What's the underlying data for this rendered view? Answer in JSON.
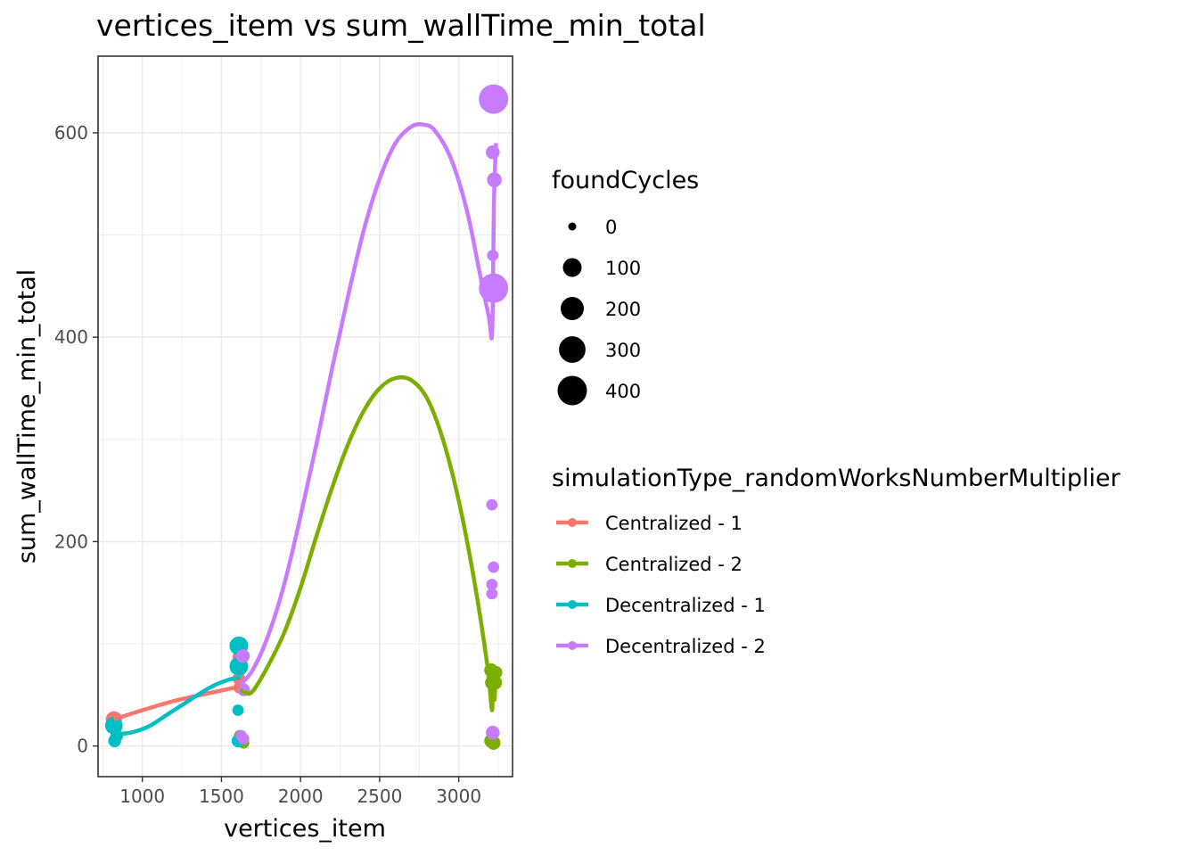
{
  "chart_data": {
    "type": "scatter",
    "title": "vertices_item  vs  sum_wallTime_min_total",
    "xlabel": "vertices_item",
    "ylabel": "sum_wallTime_min_total",
    "xlim": [
      720,
      3340
    ],
    "ylim": [
      -30,
      675
    ],
    "x_ticks": [
      1000,
      1500,
      2000,
      2500,
      3000
    ],
    "y_ticks": [
      0,
      200,
      400,
      600
    ],
    "grid": true,
    "legend_position": "right",
    "size_legend": {
      "title": "foundCycles",
      "values": [
        0,
        100,
        200,
        300,
        400
      ]
    },
    "color_legend": {
      "title": "simulationType_randomWorksNumberMultiplier"
    },
    "series": [
      {
        "name": "Centralized - 1",
        "color": "#F8766D",
        "points": [
          {
            "x": 820,
            "y": 26,
            "size": 60
          },
          {
            "x": 820,
            "y": 24,
            "size": 20
          },
          {
            "x": 1610,
            "y": 87,
            "size": 20
          },
          {
            "x": 1610,
            "y": 66,
            "size": 20
          },
          {
            "x": 1612,
            "y": 57,
            "size": 10
          }
        ],
        "fit": [
          [
            820,
            26
          ],
          [
            1000,
            35
          ],
          [
            1200,
            44
          ],
          [
            1400,
            51
          ],
          [
            1550,
            56
          ],
          [
            1620,
            58
          ]
        ]
      },
      {
        "name": "Centralized - 2",
        "color": "#7CAE00",
        "points": [
          {
            "x": 1615,
            "y": 10,
            "size": 10
          },
          {
            "x": 1620,
            "y": 5,
            "size": 10
          },
          {
            "x": 1640,
            "y": 3,
            "size": 10
          },
          {
            "x": 3205,
            "y": 74,
            "size": 30
          },
          {
            "x": 3220,
            "y": 70,
            "size": 30
          },
          {
            "x": 3235,
            "y": 72,
            "size": 20
          },
          {
            "x": 3210,
            "y": 62,
            "size": 30
          },
          {
            "x": 3230,
            "y": 62,
            "size": 30
          },
          {
            "x": 3205,
            "y": 5,
            "size": 30
          },
          {
            "x": 3220,
            "y": 3,
            "size": 30
          }
        ],
        "fit": [
          [
            1620,
            55
          ],
          [
            1650,
            52
          ],
          [
            1700,
            54
          ],
          [
            1800,
            80
          ],
          [
            1900,
            112
          ],
          [
            2000,
            155
          ],
          [
            2100,
            205
          ],
          [
            2200,
            253
          ],
          [
            2300,
            295
          ],
          [
            2400,
            328
          ],
          [
            2500,
            350
          ],
          [
            2600,
            360
          ],
          [
            2700,
            358
          ],
          [
            2800,
            340
          ],
          [
            2900,
            300
          ],
          [
            3000,
            240
          ],
          [
            3100,
            160
          ],
          [
            3180,
            80
          ],
          [
            3210,
            35
          ],
          [
            3215,
            70
          ],
          [
            3225,
            45
          ],
          [
            3232,
            65
          ]
        ]
      },
      {
        "name": "Decentralized - 1",
        "color": "#00BFC4",
        "points": [
          {
            "x": 820,
            "y": 20,
            "size": 80
          },
          {
            "x": 825,
            "y": 5,
            "size": 20
          },
          {
            "x": 838,
            "y": 10,
            "size": 20
          },
          {
            "x": 1610,
            "y": 98,
            "size": 100
          },
          {
            "x": 1610,
            "y": 78,
            "size": 100
          },
          {
            "x": 1605,
            "y": 35,
            "size": 10
          },
          {
            "x": 1605,
            "y": 5,
            "size": 20
          }
        ],
        "fit": [
          [
            820,
            15
          ],
          [
            860,
            12
          ],
          [
            950,
            14
          ],
          [
            1050,
            20
          ],
          [
            1150,
            30
          ],
          [
            1250,
            40
          ],
          [
            1350,
            50
          ],
          [
            1450,
            59
          ],
          [
            1550,
            65
          ],
          [
            1620,
            67
          ]
        ]
      },
      {
        "name": "Decentralized - 2",
        "color": "#C77CFF",
        "points": [
          {
            "x": 3220,
            "y": 633,
            "size": 400
          },
          {
            "x": 3215,
            "y": 581,
            "size": 30
          },
          {
            "x": 3225,
            "y": 554,
            "size": 40
          },
          {
            "x": 3215,
            "y": 480,
            "size": 10
          },
          {
            "x": 3220,
            "y": 448,
            "size": 400
          },
          {
            "x": 3210,
            "y": 236,
            "size": 10
          },
          {
            "x": 3220,
            "y": 175,
            "size": 10
          },
          {
            "x": 3210,
            "y": 158,
            "size": 10
          },
          {
            "x": 3210,
            "y": 149,
            "size": 10
          },
          {
            "x": 3215,
            "y": 13,
            "size": 30
          },
          {
            "x": 1635,
            "y": 88,
            "size": 30
          },
          {
            "x": 1640,
            "y": 55,
            "size": 20
          },
          {
            "x": 1625,
            "y": 10,
            "size": 10
          },
          {
            "x": 1640,
            "y": 7,
            "size": 10
          }
        ],
        "fit": [
          [
            1620,
            60
          ],
          [
            1700,
            75
          ],
          [
            1800,
            110
          ],
          [
            1900,
            160
          ],
          [
            2000,
            225
          ],
          [
            2100,
            295
          ],
          [
            2200,
            370
          ],
          [
            2300,
            440
          ],
          [
            2400,
            505
          ],
          [
            2500,
            555
          ],
          [
            2600,
            590
          ],
          [
            2700,
            606
          ],
          [
            2780,
            608
          ],
          [
            2850,
            602
          ],
          [
            2950,
            575
          ],
          [
            3050,
            525
          ],
          [
            3130,
            465
          ],
          [
            3190,
            420
          ],
          [
            3210,
            401
          ],
          [
            3218,
            470
          ],
          [
            3222,
            530
          ],
          [
            3228,
            560
          ],
          [
            3235,
            590
          ]
        ]
      }
    ]
  }
}
